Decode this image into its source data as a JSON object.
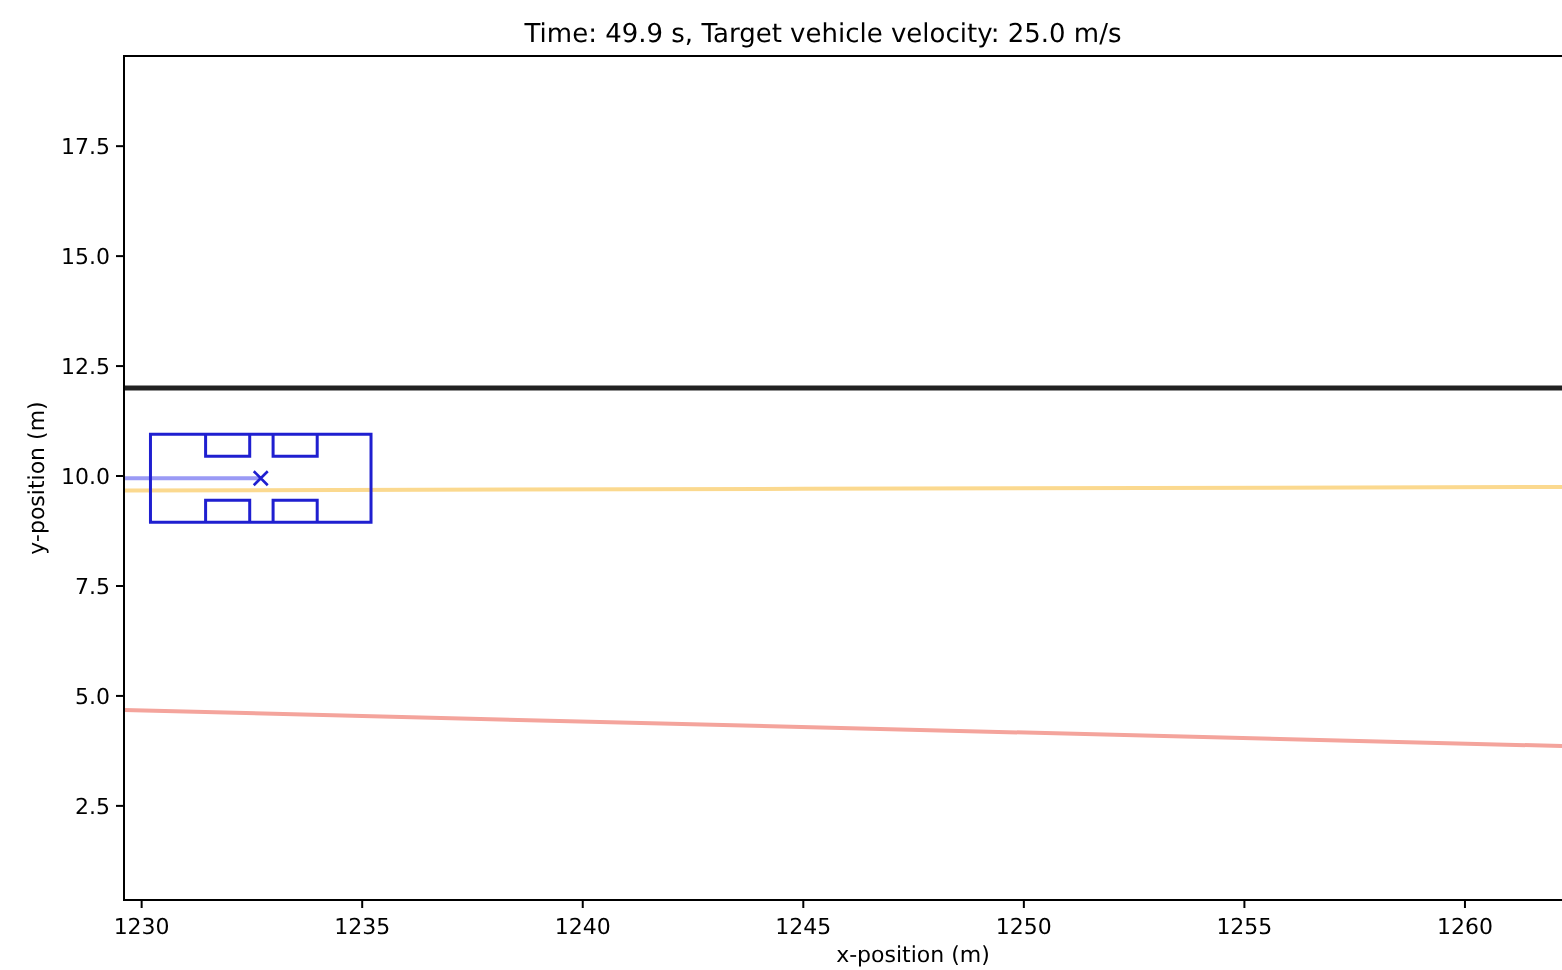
{
  "chart_data": {
    "type": "line",
    "title": "Time: 49.9 s, Target vehicle velocity: 25.0 m/s",
    "xlabel": "x-position (m)",
    "ylabel": "y-position (m)",
    "xlim": [
      1229.6,
      1262.2
    ],
    "ylim": [
      0.36,
      19.55
    ],
    "xticks": [
      1230,
      1235,
      1240,
      1245,
      1250,
      1255,
      1260
    ],
    "yticks": [
      {
        "value": 2.5,
        "label": "2.5"
      },
      {
        "value": 5,
        "label": "5.0"
      },
      {
        "value": 7.5,
        "label": "7.5"
      },
      {
        "value": 10,
        "label": "10.0"
      },
      {
        "value": 12.5,
        "label": "12.5"
      },
      {
        "value": 15,
        "label": "15.0"
      },
      {
        "value": 17.5,
        "label": "17.5"
      }
    ],
    "grid": false,
    "ref_lines": [
      {
        "axis": "y",
        "value": 12,
        "color": "#222222"
      }
    ],
    "series": [
      {
        "color": "#fbd98f",
        "x": [
          1229.6,
          1245,
          1262.2
        ],
        "values": [
          9.67,
          9.71,
          9.75
        ]
      },
      {
        "color": "#f4a49c",
        "x": [
          1229.6,
          1262.2
        ],
        "values": [
          4.68,
          3.86
        ]
      },
      {
        "color": "#9a9af5",
        "x": [
          1229.6,
          1232.7
        ],
        "values": [
          9.95,
          9.95
        ]
      },
      {
        "type": "scatter",
        "color": "#1f1fd0",
        "marker": "cross",
        "x": [
          1232.7
        ],
        "values": [
          9.95
        ]
      }
    ]
  }
}
